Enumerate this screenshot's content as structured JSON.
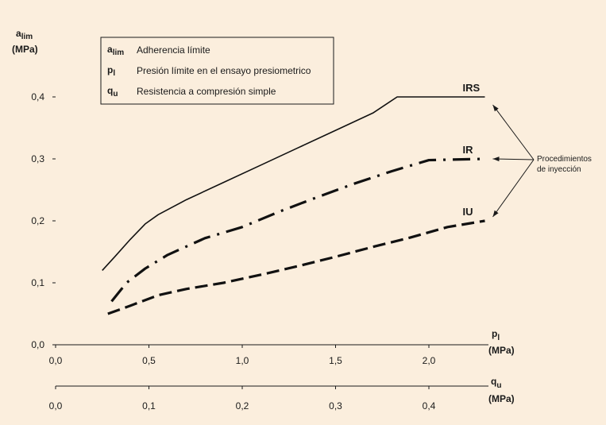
{
  "chart_data": {
    "type": "line",
    "y_label": {
      "symbol": "a",
      "sub": "lim",
      "unit": "(MPa)"
    },
    "x_label": {
      "symbol": "p",
      "sub": "l",
      "unit": "(MPa)"
    },
    "x2_label": {
      "symbol": "q",
      "sub": "u",
      "unit": "(MPa)"
    },
    "x_ticks": [
      "0,0",
      "0,5",
      "1,0",
      "1,5",
      "2,0"
    ],
    "x2_ticks": [
      "0,0",
      "0,1",
      "0,2",
      "0,3",
      "0,4"
    ],
    "y_ticks": [
      "0,0",
      "0,1",
      "0,2",
      "0,3",
      "0,4"
    ],
    "xlim": [
      0,
      2.5
    ],
    "x2lim": [
      0,
      0.5
    ],
    "ylim": [
      0,
      0.4
    ],
    "legend": {
      "position": "top-left",
      "items": [
        {
          "symbol": "a",
          "sub": "lim",
          "text": "Adherencia límite"
        },
        {
          "symbol": "p",
          "sub": "l",
          "text": "Presión límite en el ensayo presiometrico"
        },
        {
          "symbol": "q",
          "sub": "u",
          "text": "Resistencia a compresión simple"
        }
      ]
    },
    "annotation": {
      "line1": "Procedimientos",
      "line2": "de inyección"
    },
    "series": [
      {
        "name": "IRS",
        "style": "solid",
        "x": [
          0.25,
          0.32,
          0.4,
          0.48,
          0.55,
          0.7,
          0.9,
          1.1,
          1.3,
          1.5,
          1.7,
          1.83,
          2.3
        ],
        "y": [
          0.12,
          0.143,
          0.17,
          0.195,
          0.21,
          0.234,
          0.262,
          0.29,
          0.318,
          0.346,
          0.374,
          0.4,
          0.4
        ]
      },
      {
        "name": "IR",
        "style": "dashdot",
        "x": [
          0.3,
          0.38,
          0.48,
          0.6,
          0.8,
          1.0,
          1.2,
          1.4,
          1.6,
          1.8,
          2.0,
          2.3
        ],
        "y": [
          0.07,
          0.1,
          0.123,
          0.145,
          0.172,
          0.19,
          0.215,
          0.238,
          0.26,
          0.28,
          0.298,
          0.3
        ]
      },
      {
        "name": "IU",
        "style": "dashed",
        "x": [
          0.28,
          0.4,
          0.55,
          0.7,
          0.9,
          1.1,
          1.3,
          1.5,
          1.7,
          1.9,
          2.1,
          2.3
        ],
        "y": [
          0.05,
          0.063,
          0.08,
          0.09,
          0.1,
          0.113,
          0.127,
          0.142,
          0.158,
          0.173,
          0.19,
          0.2
        ]
      }
    ]
  }
}
